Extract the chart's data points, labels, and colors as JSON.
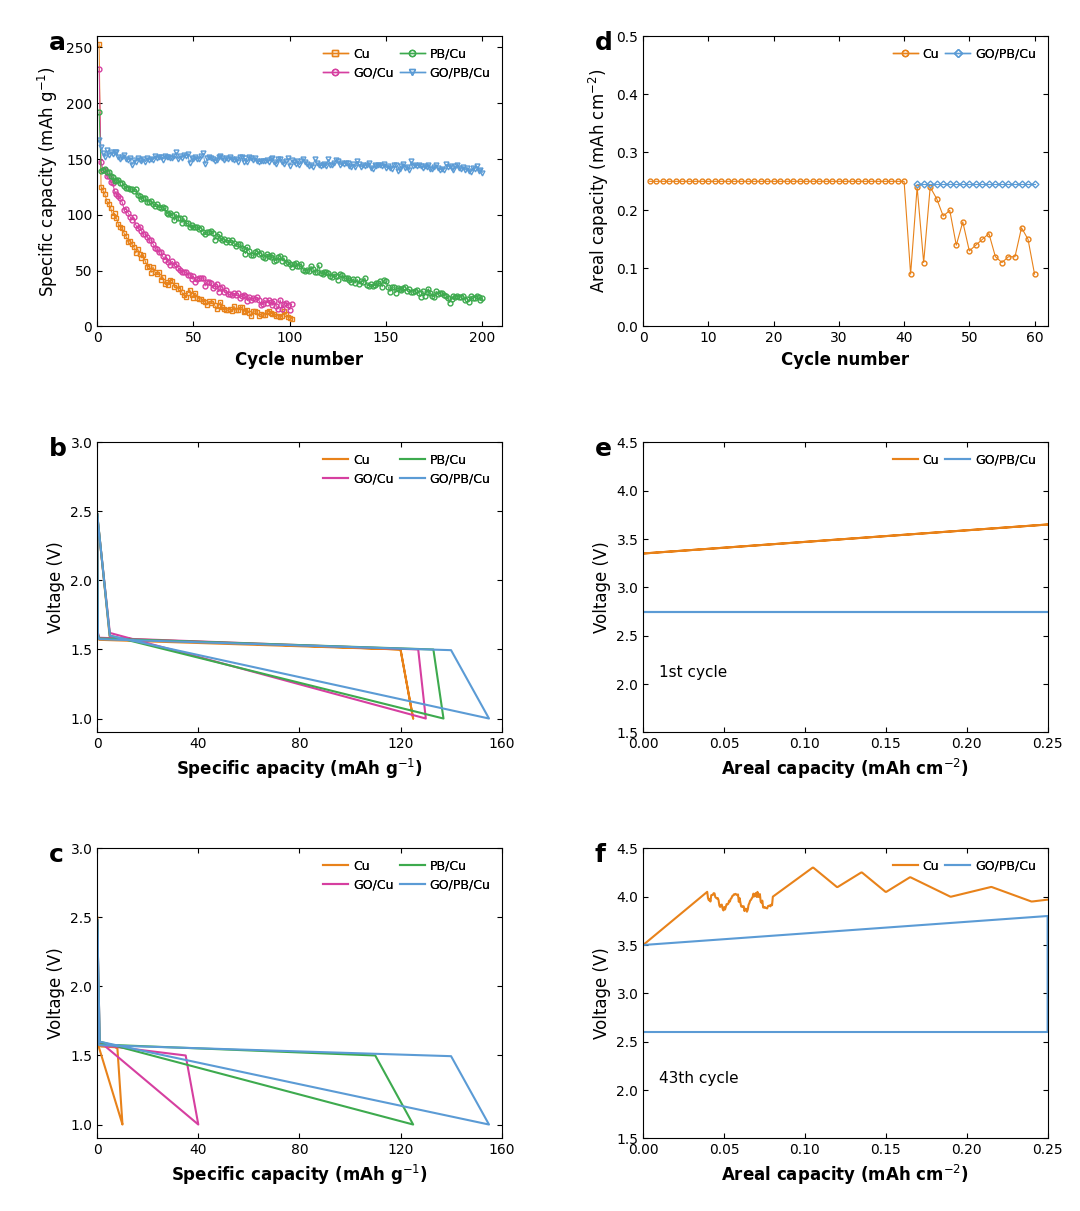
{
  "colors": {
    "Cu": "#E8821A",
    "PB_Cu": "#3DAA4E",
    "GO_Cu": "#D63FA0",
    "GO_PB_Cu": "#5B9BD5"
  },
  "panel_labels": [
    "a",
    "b",
    "c",
    "d",
    "e",
    "f"
  ],
  "panel_label_fontsize": 18,
  "axis_label_fontsize": 12,
  "tick_fontsize": 10,
  "legend_fontsize": 10,
  "annotation_fontsize": 11
}
